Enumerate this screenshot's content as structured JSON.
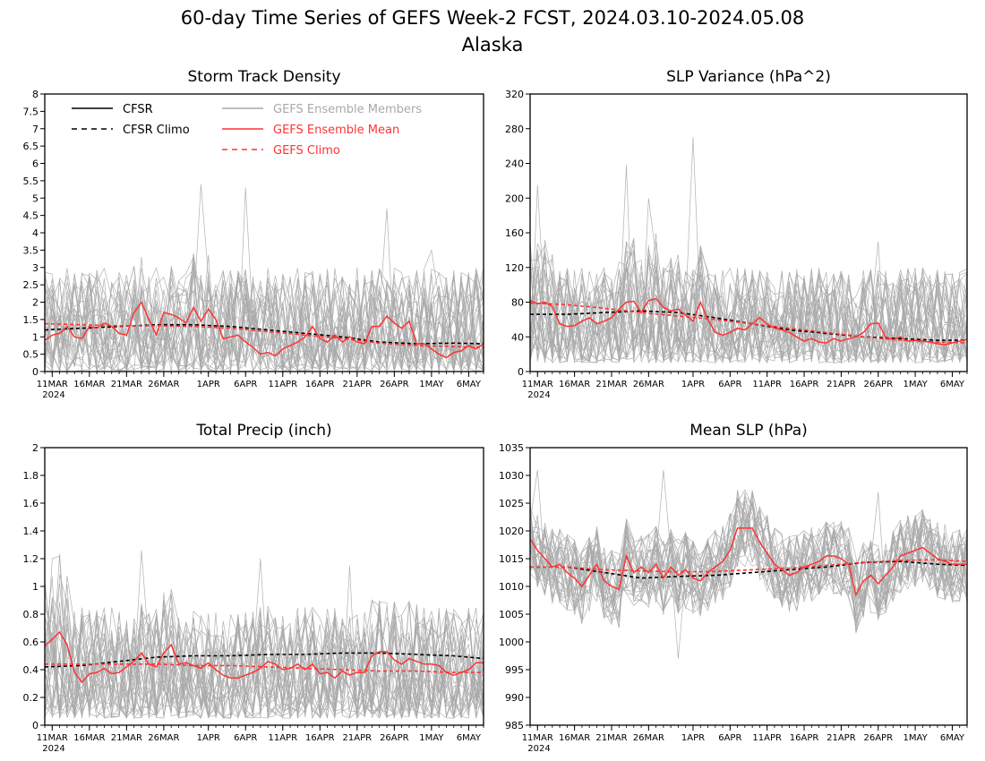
{
  "figure": {
    "title": "60-day Time Series of GEFS Week-2 FCST, 2024.03.10-2024.05.08",
    "subtitle": "Alaska"
  },
  "colors": {
    "cfsr": "#000000",
    "ensemble_member": "#a9a9a9",
    "ensemble_mean": "#ff3333",
    "gefs_climo": "#ff3333"
  },
  "legend": {
    "entries": [
      {
        "label": "CFSR",
        "style": "solid",
        "color": "#000000"
      },
      {
        "label": "CFSR Climo",
        "style": "dashed",
        "color": "#000000"
      },
      {
        "label": "GEFS Ensemble Members",
        "style": "solid",
        "color": "#a9a9a9"
      },
      {
        "label": "GEFS Ensemble Mean",
        "style": "solid",
        "color": "#ff3333"
      },
      {
        "label": "GEFS Climo",
        "style": "dashed",
        "color": "#ff3333"
      }
    ],
    "placement": "top-left of Storm Track Density panel"
  },
  "x_axis": {
    "ticks": [
      {
        "label": "11MAR",
        "day": 1
      },
      {
        "label": "16MAR",
        "day": 6
      },
      {
        "label": "21MAR",
        "day": 11
      },
      {
        "label": "26MAR",
        "day": 16
      },
      {
        "label": "1APR",
        "day": 22
      },
      {
        "label": "6APR",
        "day": 27
      },
      {
        "label": "11APR",
        "day": 32
      },
      {
        "label": "16APR",
        "day": 37
      },
      {
        "label": "21APR",
        "day": 42
      },
      {
        "label": "26APR",
        "day": 47
      },
      {
        "label": "1MAY",
        "day": 52
      },
      {
        "label": "6MAY",
        "day": 57
      }
    ],
    "year_label": "2024",
    "range": [
      0,
      59
    ]
  },
  "chart_data": [
    {
      "type": "line",
      "title": "Storm Track Density",
      "ylim": [
        0,
        8
      ],
      "yticks": [
        0,
        0.5,
        1,
        1.5,
        2,
        2.5,
        3,
        3.5,
        4,
        4.5,
        5,
        5.5,
        6,
        6.5,
        7,
        7.5,
        8
      ],
      "ytick_labels": [
        "0",
        "0.5",
        "1",
        "1.5",
        "2",
        "2.5",
        "3",
        "3.5",
        "4",
        "4.5",
        "5",
        "5.5",
        "6",
        "6.5",
        "7",
        "7.5",
        "8"
      ],
      "ensemble_spread": {
        "min": 0,
        "typical_max": 3.0,
        "peaks": [
          [
            21,
            5.4
          ],
          [
            27,
            5.3
          ],
          [
            46,
            4.7
          ],
          [
            52,
            3.5
          ]
        ]
      },
      "series": [
        {
          "name": "GEFS Ensemble Mean",
          "x": [
            0,
            1,
            2,
            3,
            4,
            5,
            6,
            7,
            8,
            9,
            10,
            11,
            12,
            13,
            14,
            15,
            16,
            17,
            18,
            19,
            20,
            21,
            22,
            23,
            24,
            25,
            26,
            27,
            28,
            29,
            30,
            31,
            32,
            33,
            34,
            35,
            36,
            37,
            38,
            39,
            40,
            41,
            42,
            43,
            44,
            45,
            46,
            47,
            48,
            49,
            50,
            51,
            52,
            53,
            54,
            55,
            56,
            57,
            58,
            59
          ],
          "y": [
            0.9,
            1.05,
            1.1,
            1.3,
            1.0,
            0.95,
            1.3,
            1.25,
            1.4,
            1.3,
            1.1,
            1.05,
            1.7,
            2.0,
            1.5,
            1.05,
            1.7,
            1.65,
            1.55,
            1.4,
            1.85,
            1.45,
            1.8,
            1.5,
            0.95,
            1.0,
            1.05,
            0.85,
            0.7,
            0.5,
            0.55,
            0.45,
            0.65,
            0.75,
            0.85,
            1.0,
            1.3,
            0.95,
            0.85,
            1.05,
            0.85,
            1.0,
            0.85,
            0.8,
            1.3,
            1.3,
            1.6,
            1.4,
            1.25,
            1.45,
            0.8,
            0.8,
            0.65,
            0.5,
            0.4,
            0.55,
            0.6,
            0.75,
            0.65,
            0.8
          ]
        },
        {
          "name": "CFSR Climo",
          "x": [
            0,
            5,
            10,
            15,
            20,
            25,
            30,
            35,
            40,
            45,
            50,
            55,
            59
          ],
          "y": [
            1.2,
            1.25,
            1.3,
            1.35,
            1.35,
            1.3,
            1.2,
            1.1,
            1.0,
            0.85,
            0.8,
            0.82,
            0.8
          ]
        },
        {
          "name": "GEFS Climo",
          "x": [
            0,
            5,
            10,
            15,
            20,
            25,
            30,
            35,
            40,
            45,
            50,
            55,
            59
          ],
          "y": [
            1.38,
            1.35,
            1.32,
            1.32,
            1.3,
            1.25,
            1.15,
            1.05,
            0.95,
            0.82,
            0.75,
            0.72,
            0.7
          ]
        }
      ]
    },
    {
      "type": "line",
      "title": "SLP Variance (hPa^2)",
      "ylim": [
        0,
        320
      ],
      "yticks": [
        0,
        40,
        80,
        120,
        160,
        200,
        240,
        280,
        320
      ],
      "ytick_labels": [
        "0",
        "40",
        "80",
        "120",
        "160",
        "200",
        "240",
        "280",
        "320"
      ],
      "ensemble_spread": {
        "min": 10,
        "typical_max": 120,
        "peaks": [
          [
            1,
            215
          ],
          [
            13,
            238
          ],
          [
            16,
            200
          ],
          [
            22,
            270
          ],
          [
            47,
            150
          ]
        ]
      },
      "series": [
        {
          "name": "GEFS Ensemble Mean",
          "x": [
            0,
            1,
            2,
            3,
            4,
            5,
            6,
            7,
            8,
            9,
            10,
            11,
            12,
            13,
            14,
            15,
            16,
            17,
            18,
            19,
            20,
            21,
            22,
            23,
            24,
            25,
            26,
            27,
            28,
            29,
            30,
            31,
            32,
            33,
            34,
            35,
            36,
            37,
            38,
            39,
            40,
            41,
            42,
            43,
            44,
            45,
            46,
            47,
            48,
            49,
            50,
            51,
            52,
            53,
            54,
            55,
            56,
            57,
            58,
            59
          ],
          "y": [
            82,
            78,
            80,
            75,
            55,
            52,
            53,
            58,
            62,
            55,
            58,
            62,
            72,
            80,
            81,
            68,
            82,
            84,
            74,
            70,
            72,
            65,
            58,
            80,
            60,
            45,
            42,
            45,
            50,
            48,
            55,
            62,
            55,
            50,
            48,
            45,
            40,
            35,
            38,
            34,
            33,
            38,
            35,
            38,
            40,
            45,
            55,
            56,
            40,
            37,
            40,
            35,
            36,
            35,
            34,
            32,
            31,
            33,
            35,
            37
          ]
        },
        {
          "name": "CFSR Climo",
          "x": [
            0,
            5,
            10,
            15,
            20,
            25,
            30,
            35,
            40,
            45,
            50,
            55,
            59
          ],
          "y": [
            66,
            66,
            68,
            70,
            68,
            62,
            55,
            48,
            44,
            40,
            38,
            36,
            36
          ]
        },
        {
          "name": "GEFS Climo",
          "x": [
            0,
            5,
            10,
            15,
            20,
            25,
            30,
            35,
            40,
            45,
            50,
            55,
            59
          ],
          "y": [
            79,
            77,
            73,
            68,
            64,
            60,
            55,
            50,
            45,
            40,
            36,
            34,
            33
          ]
        }
      ]
    },
    {
      "type": "line",
      "title": "Total Precip (inch)",
      "ylim": [
        0,
        2
      ],
      "yticks": [
        0,
        0.2,
        0.4,
        0.6,
        0.8,
        1,
        1.2,
        1.4,
        1.6,
        1.8,
        2
      ],
      "ytick_labels": [
        "0",
        "0.2",
        "0.4",
        "0.6",
        "0.8",
        "1",
        "1.2",
        "1.4",
        "1.6",
        "1.8",
        "2"
      ],
      "ensemble_spread": {
        "min": 0.05,
        "typical_max": 0.85,
        "peaks": [
          [
            1,
            1.2
          ],
          [
            13,
            1.26
          ],
          [
            29,
            1.2
          ],
          [
            41,
            1.15
          ]
        ]
      },
      "series": [
        {
          "name": "GEFS Ensemble Mean",
          "x": [
            0,
            1,
            2,
            3,
            4,
            5,
            6,
            7,
            8,
            9,
            10,
            11,
            12,
            13,
            14,
            15,
            16,
            17,
            18,
            19,
            20,
            21,
            22,
            23,
            24,
            25,
            26,
            27,
            28,
            29,
            30,
            31,
            32,
            33,
            34,
            35,
            36,
            37,
            38,
            39,
            40,
            41,
            42,
            43,
            44,
            45,
            46,
            47,
            48,
            49,
            50,
            51,
            52,
            53,
            54,
            55,
            56,
            57,
            58,
            59
          ],
          "y": [
            0.57,
            0.62,
            0.67,
            0.58,
            0.38,
            0.31,
            0.37,
            0.38,
            0.41,
            0.37,
            0.38,
            0.42,
            0.46,
            0.52,
            0.44,
            0.42,
            0.52,
            0.58,
            0.44,
            0.45,
            0.43,
            0.41,
            0.45,
            0.4,
            0.36,
            0.34,
            0.34,
            0.36,
            0.38,
            0.41,
            0.46,
            0.44,
            0.4,
            0.41,
            0.44,
            0.4,
            0.44,
            0.37,
            0.38,
            0.34,
            0.39,
            0.36,
            0.38,
            0.38,
            0.5,
            0.53,
            0.53,
            0.47,
            0.44,
            0.48,
            0.46,
            0.44,
            0.44,
            0.43,
            0.38,
            0.36,
            0.38,
            0.4,
            0.45,
            0.45
          ]
        },
        {
          "name": "CFSR Climo",
          "x": [
            0,
            5,
            10,
            15,
            20,
            25,
            30,
            35,
            40,
            45,
            50,
            55,
            59
          ],
          "y": [
            0.42,
            0.43,
            0.46,
            0.49,
            0.5,
            0.5,
            0.51,
            0.51,
            0.52,
            0.52,
            0.51,
            0.5,
            0.48
          ]
        },
        {
          "name": "GEFS Climo",
          "x": [
            0,
            5,
            10,
            15,
            20,
            25,
            30,
            35,
            40,
            45,
            50,
            55,
            59
          ],
          "y": [
            0.44,
            0.44,
            0.44,
            0.44,
            0.43,
            0.43,
            0.42,
            0.41,
            0.4,
            0.39,
            0.39,
            0.38,
            0.38
          ]
        }
      ]
    },
    {
      "type": "line",
      "title": "Mean SLP (hPa)",
      "ylim": [
        985,
        1035
      ],
      "yticks": [
        985,
        990,
        995,
        1000,
        1005,
        1010,
        1015,
        1020,
        1025,
        1030,
        1035
      ],
      "ytick_labels": [
        "985",
        "990",
        "995",
        "1000",
        "1005",
        "1010",
        "1015",
        "1020",
        "1025",
        "1030",
        "1035"
      ],
      "ensemble_spread": {
        "min_offset": -7,
        "max_offset": 7,
        "peaks": [
          [
            1,
            1031
          ],
          [
            18,
            1031
          ],
          [
            20,
            997
          ],
          [
            47,
            1027
          ]
        ]
      },
      "series": [
        {
          "name": "GEFS Ensemble Mean",
          "x": [
            0,
            1,
            2,
            3,
            4,
            5,
            6,
            7,
            8,
            9,
            10,
            11,
            12,
            13,
            14,
            15,
            16,
            17,
            18,
            19,
            20,
            21,
            22,
            23,
            24,
            25,
            26,
            27,
            28,
            29,
            30,
            31,
            32,
            33,
            34,
            35,
            36,
            37,
            38,
            39,
            40,
            41,
            42,
            43,
            44,
            45,
            46,
            47,
            48,
            49,
            50,
            51,
            52,
            53,
            54,
            55,
            56,
            57,
            58,
            59
          ],
          "y": [
            1018.5,
            1016.5,
            1015,
            1013.5,
            1014,
            1012.5,
            1011.5,
            1010,
            1012,
            1014,
            1011,
            1010,
            1009.5,
            1015.5,
            1012.5,
            1013.5,
            1012.5,
            1014,
            1011.5,
            1013.5,
            1012,
            1013,
            1011.5,
            1011,
            1012.5,
            1013.5,
            1014.5,
            1016.5,
            1020.5,
            1020.5,
            1020.5,
            1018,
            1016,
            1014,
            1013,
            1012,
            1012.5,
            1013.5,
            1014,
            1014.5,
            1015.5,
            1015.5,
            1015,
            1014,
            1008.5,
            1011,
            1012,
            1010.5,
            1012,
            1013.5,
            1015.5,
            1016,
            1016.5,
            1017,
            1016,
            1015,
            1014.5,
            1014,
            1014,
            1014
          ]
        },
        {
          "name": "CFSR Climo",
          "x": [
            0,
            5,
            10,
            15,
            20,
            25,
            30,
            35,
            40,
            45,
            50,
            55,
            59
          ],
          "y": [
            1013.5,
            1013.5,
            1012.5,
            1011.5,
            1011.8,
            1012,
            1012.5,
            1013,
            1013.5,
            1014.3,
            1014.5,
            1014,
            1013.8
          ]
        },
        {
          "name": "GEFS Climo",
          "x": [
            0,
            5,
            10,
            15,
            20,
            25,
            30,
            35,
            40,
            45,
            50,
            55,
            59
          ],
          "y": [
            1013.5,
            1013.5,
            1013,
            1012.8,
            1012.6,
            1012.7,
            1013,
            1013.3,
            1013.8,
            1014.3,
            1014.7,
            1014.8,
            1014.5
          ]
        }
      ]
    }
  ]
}
